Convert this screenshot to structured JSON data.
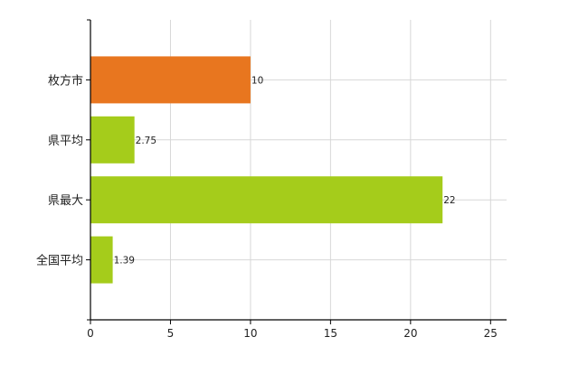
{
  "chart_data": {
    "type": "bar",
    "orientation": "horizontal",
    "title": "",
    "xlabel": "",
    "ylabel": "",
    "categories": [
      "枚方市",
      "県平均",
      "県最大",
      "全国平均"
    ],
    "values": [
      10,
      2.75,
      22,
      1.39
    ],
    "value_labels": [
      "10",
      "2.75",
      "22",
      "1.39"
    ],
    "colors": [
      "#e8761f",
      "#a5cc1b",
      "#a5cc1b",
      "#a5cc1b"
    ],
    "xlim": [
      0,
      26
    ],
    "xticks": [
      0,
      5,
      10,
      15,
      20,
      25
    ],
    "grid": true,
    "legend": "none"
  }
}
